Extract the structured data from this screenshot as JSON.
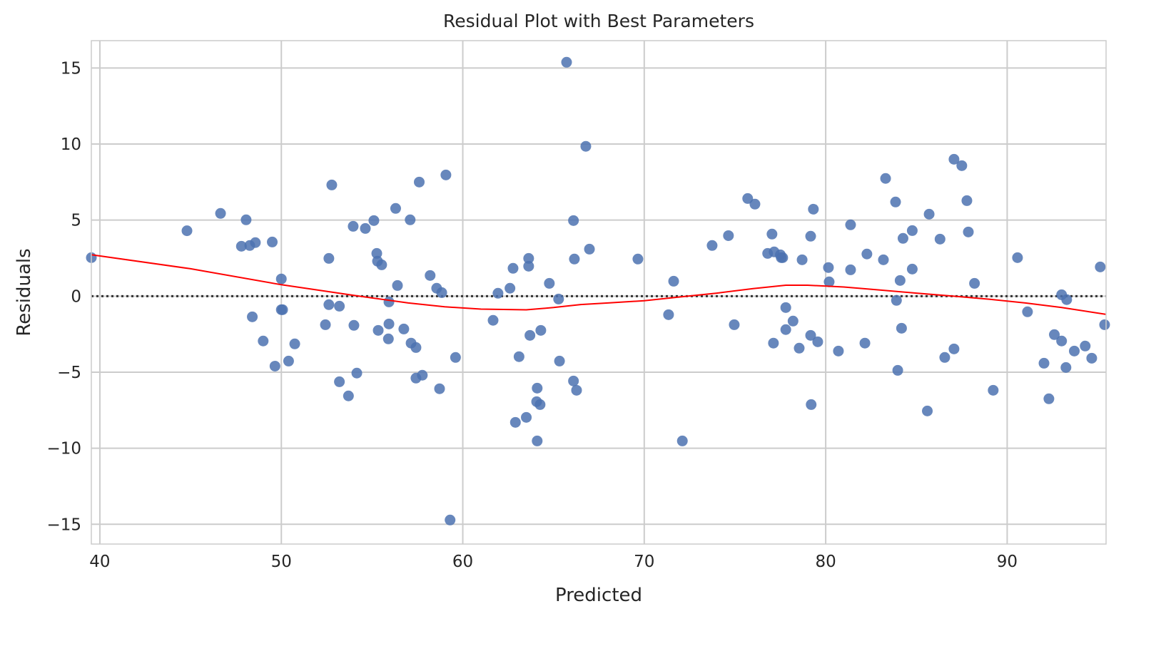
{
  "chart_data": {
    "type": "scatter",
    "title": "Residual Plot with Best Parameters",
    "xlabel": "Predicted",
    "ylabel": "Residuals",
    "xlim": [
      39.53,
      95.45
    ],
    "ylim": [
      -16.3,
      16.8
    ],
    "xticks": [
      40,
      50,
      60,
      70,
      80,
      90
    ],
    "yticks": [
      -15,
      -10,
      -5,
      0,
      5,
      10,
      15
    ],
    "xtick_labels": [
      "40",
      "50",
      "60",
      "70",
      "80",
      "90"
    ],
    "ytick_labels": [
      "−15",
      "−10",
      "−5",
      "0",
      "5",
      "10",
      "15"
    ],
    "grid": true,
    "colors": {
      "points": "#4c72b0",
      "lowess": "#ff0000",
      "zero_line": "#333333",
      "grid": "#cccccc"
    },
    "points": [
      [
        39.53,
        2.53
      ],
      [
        44.8,
        4.3
      ],
      [
        46.65,
        5.44
      ],
      [
        47.8,
        3.28
      ],
      [
        48.06,
        5.02
      ],
      [
        48.26,
        3.33
      ],
      [
        48.57,
        3.52
      ],
      [
        48.4,
        -1.36
      ],
      [
        49.0,
        -2.95
      ],
      [
        49.5,
        3.56
      ],
      [
        49.65,
        -4.6
      ],
      [
        50.0,
        1.13
      ],
      [
        50.0,
        -0.89
      ],
      [
        50.07,
        -0.89
      ],
      [
        50.4,
        -4.27
      ],
      [
        50.74,
        -3.14
      ],
      [
        52.43,
        -1.88
      ],
      [
        52.62,
        2.48
      ],
      [
        52.62,
        -0.56
      ],
      [
        52.78,
        7.31
      ],
      [
        53.2,
        -0.66
      ],
      [
        53.2,
        -5.63
      ],
      [
        53.7,
        -6.56
      ],
      [
        53.96,
        4.59
      ],
      [
        54.0,
        -1.92
      ],
      [
        54.16,
        -5.06
      ],
      [
        54.63,
        4.45
      ],
      [
        55.1,
        4.97
      ],
      [
        55.26,
        2.81
      ],
      [
        55.3,
        2.3
      ],
      [
        55.53,
        2.06
      ],
      [
        55.34,
        -2.25
      ],
      [
        55.93,
        -0.38
      ],
      [
        55.93,
        -1.83
      ],
      [
        55.9,
        -2.81
      ],
      [
        56.3,
        5.77
      ],
      [
        56.4,
        0.7
      ],
      [
        56.75,
        -2.16
      ],
      [
        57.1,
        5.02
      ],
      [
        57.15,
        -3.09
      ],
      [
        57.42,
        -3.38
      ],
      [
        57.6,
        7.5
      ],
      [
        57.42,
        -5.39
      ],
      [
        57.77,
        -5.2
      ],
      [
        58.2,
        1.36
      ],
      [
        58.56,
        0.52
      ],
      [
        58.84,
        0.23
      ],
      [
        58.72,
        -6.09
      ],
      [
        59.07,
        7.97
      ],
      [
        59.3,
        -14.72
      ],
      [
        59.6,
        -4.03
      ],
      [
        61.67,
        -1.59
      ],
      [
        61.94,
        0.19
      ],
      [
        62.6,
        0.52
      ],
      [
        62.77,
        1.83
      ],
      [
        62.9,
        -8.3
      ],
      [
        63.1,
        -3.98
      ],
      [
        63.63,
        2.48
      ],
      [
        63.63,
        1.97
      ],
      [
        63.5,
        -7.97
      ],
      [
        63.7,
        -2.58
      ],
      [
        64.1,
        -6.05
      ],
      [
        64.3,
        -2.25
      ],
      [
        64.07,
        -6.94
      ],
      [
        64.26,
        -7.13
      ],
      [
        64.1,
        -9.52
      ],
      [
        64.77,
        0.84
      ],
      [
        65.28,
        -0.19
      ],
      [
        65.33,
        -4.27
      ],
      [
        65.72,
        15.38
      ],
      [
        66.1,
        4.97
      ],
      [
        66.15,
        2.44
      ],
      [
        66.1,
        -5.58
      ],
      [
        66.27,
        -6.19
      ],
      [
        66.78,
        9.85
      ],
      [
        66.98,
        3.09
      ],
      [
        69.65,
        2.44
      ],
      [
        71.34,
        -1.22
      ],
      [
        71.62,
        0.98
      ],
      [
        72.1,
        -9.52
      ],
      [
        73.74,
        3.33
      ],
      [
        74.64,
        3.98
      ],
      [
        74.96,
        -1.88
      ],
      [
        75.7,
        6.42
      ],
      [
        76.1,
        6.05
      ],
      [
        76.8,
        2.81
      ],
      [
        77.04,
        4.08
      ],
      [
        77.16,
        2.91
      ],
      [
        77.12,
        -3.09
      ],
      [
        77.5,
        2.72
      ],
      [
        77.55,
        2.53
      ],
      [
        77.63,
        2.53
      ],
      [
        77.8,
        -2.2
      ],
      [
        77.8,
        -0.75
      ],
      [
        78.2,
        -1.64
      ],
      [
        78.54,
        -3.42
      ],
      [
        78.7,
        2.39
      ],
      [
        79.17,
        3.94
      ],
      [
        79.17,
        -2.58
      ],
      [
        79.2,
        -7.13
      ],
      [
        79.32,
        5.72
      ],
      [
        79.56,
        -3.0
      ],
      [
        80.15,
        1.88
      ],
      [
        80.19,
        0.94
      ],
      [
        80.7,
        -3.61
      ],
      [
        81.37,
        4.69
      ],
      [
        81.37,
        1.73
      ],
      [
        82.16,
        -3.09
      ],
      [
        82.27,
        2.77
      ],
      [
        83.18,
        2.39
      ],
      [
        83.3,
        7.74
      ],
      [
        83.85,
        6.19
      ],
      [
        83.9,
        -0.28
      ],
      [
        83.97,
        -4.88
      ],
      [
        84.1,
        1.03
      ],
      [
        84.18,
        -2.11
      ],
      [
        84.26,
        3.8
      ],
      [
        84.77,
        4.31
      ],
      [
        84.77,
        1.78
      ],
      [
        85.6,
        -7.55
      ],
      [
        85.7,
        5.39
      ],
      [
        86.3,
        3.75
      ],
      [
        86.56,
        -4.03
      ],
      [
        87.07,
        -3.47
      ],
      [
        87.07,
        9.0
      ],
      [
        87.5,
        8.58
      ],
      [
        87.78,
        6.28
      ],
      [
        87.86,
        4.22
      ],
      [
        88.2,
        0.84
      ],
      [
        89.23,
        -6.19
      ],
      [
        90.57,
        2.53
      ],
      [
        91.12,
        -1.03
      ],
      [
        92.03,
        -4.41
      ],
      [
        92.3,
        -6.75
      ],
      [
        92.6,
        -2.53
      ],
      [
        93.0,
        0.09
      ],
      [
        93.0,
        -2.95
      ],
      [
        93.28,
        -0.23
      ],
      [
        93.24,
        -4.69
      ],
      [
        93.7,
        -3.61
      ],
      [
        94.3,
        -3.28
      ],
      [
        94.66,
        -4.08
      ],
      [
        95.13,
        1.92
      ],
      [
        95.37,
        -1.88
      ]
    ],
    "lowess": [
      [
        39.53,
        2.72
      ],
      [
        45,
        1.8
      ],
      [
        50,
        0.75
      ],
      [
        54,
        0.05
      ],
      [
        57,
        -0.45
      ],
      [
        59,
        -0.7
      ],
      [
        61,
        -0.85
      ],
      [
        63.5,
        -0.9
      ],
      [
        65,
        -0.75
      ],
      [
        66.5,
        -0.55
      ],
      [
        68,
        -0.45
      ],
      [
        70,
        -0.3
      ],
      [
        72,
        -0.05
      ],
      [
        74,
        0.2
      ],
      [
        76,
        0.5
      ],
      [
        77.8,
        0.72
      ],
      [
        79,
        0.72
      ],
      [
        81,
        0.6
      ],
      [
        83,
        0.4
      ],
      [
        85,
        0.2
      ],
      [
        87,
        0.0
      ],
      [
        89,
        -0.2
      ],
      [
        91,
        -0.45
      ],
      [
        93,
        -0.75
      ],
      [
        95.45,
        -1.2
      ]
    ]
  }
}
